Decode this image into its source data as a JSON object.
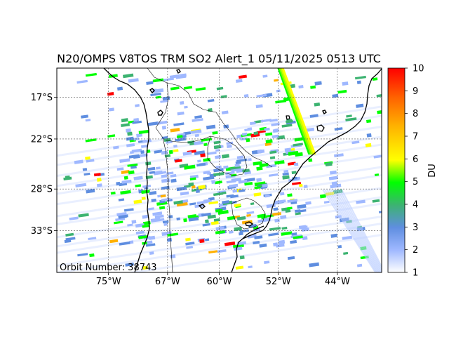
{
  "title": "N20/OMPS V8TOS TRM SO2 Alert_1 05/11/2025 0513 UTC",
  "orbit_label": "Orbit Number: 38743",
  "colorbar": {
    "label": "DU",
    "ticks": [
      "1",
      "2",
      "3",
      "4",
      "5",
      "6",
      "7",
      "8",
      "9",
      "10"
    ],
    "min": 1,
    "max": 10,
    "colors": [
      "#ffffff",
      "#9fb8ff",
      "#5f8ee0",
      "#3cb371",
      "#00ff00",
      "#ffff00",
      "#ffb000",
      "#ff6000",
      "#ff0000"
    ]
  },
  "map": {
    "lon_range": [
      -82,
      -38
    ],
    "lat_range": [
      -38,
      -13.5
    ],
    "lon_ticks": [
      {
        "value": -75,
        "label": "75°W"
      },
      {
        "value": -67,
        "label": "67°W"
      },
      {
        "value": -60,
        "label": "60°W"
      },
      {
        "value": -52,
        "label": "52°W"
      },
      {
        "value": -44,
        "label": "44°W"
      }
    ],
    "lat_ticks": [
      {
        "value": -17,
        "label": "17°S"
      },
      {
        "value": -22,
        "label": "22°S"
      },
      {
        "value": -28,
        "label": "28°S"
      },
      {
        "value": -33,
        "label": "33°S"
      }
    ],
    "gridlines": true
  }
}
